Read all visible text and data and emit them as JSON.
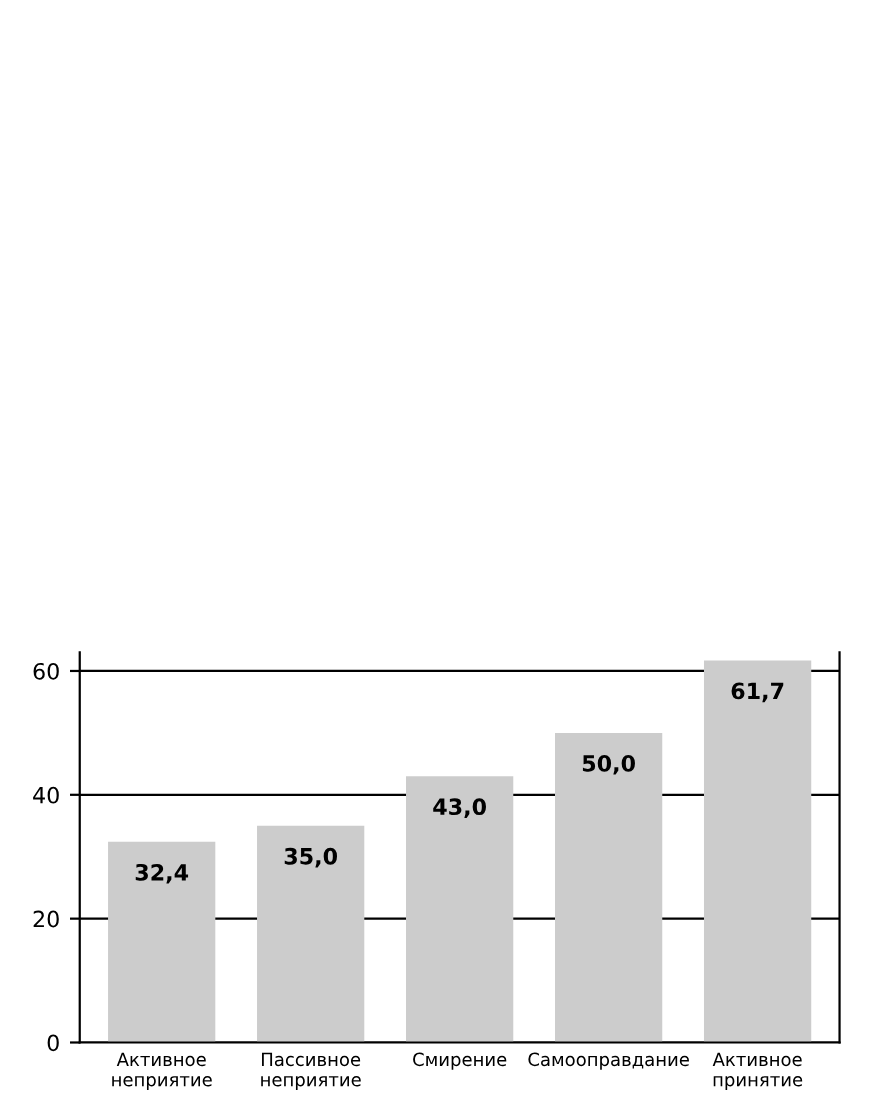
{
  "chart_data": {
    "type": "bar",
    "categories": [
      "Активное\nнеприятие",
      "Пассивное\nнеприятие",
      "Смирение",
      "Самооправдание",
      "Активное\nпринятие"
    ],
    "values": [
      32.4,
      35.0,
      43.0,
      50.0,
      61.7
    ],
    "value_labels": [
      "32,4",
      "35,0",
      "43,0",
      "50,0",
      "61,7"
    ],
    "color": "#cccccc",
    "ylim": [
      0,
      63
    ],
    "yticks": [
      0,
      20,
      40,
      60
    ],
    "grid": "y",
    "legend": false
  }
}
